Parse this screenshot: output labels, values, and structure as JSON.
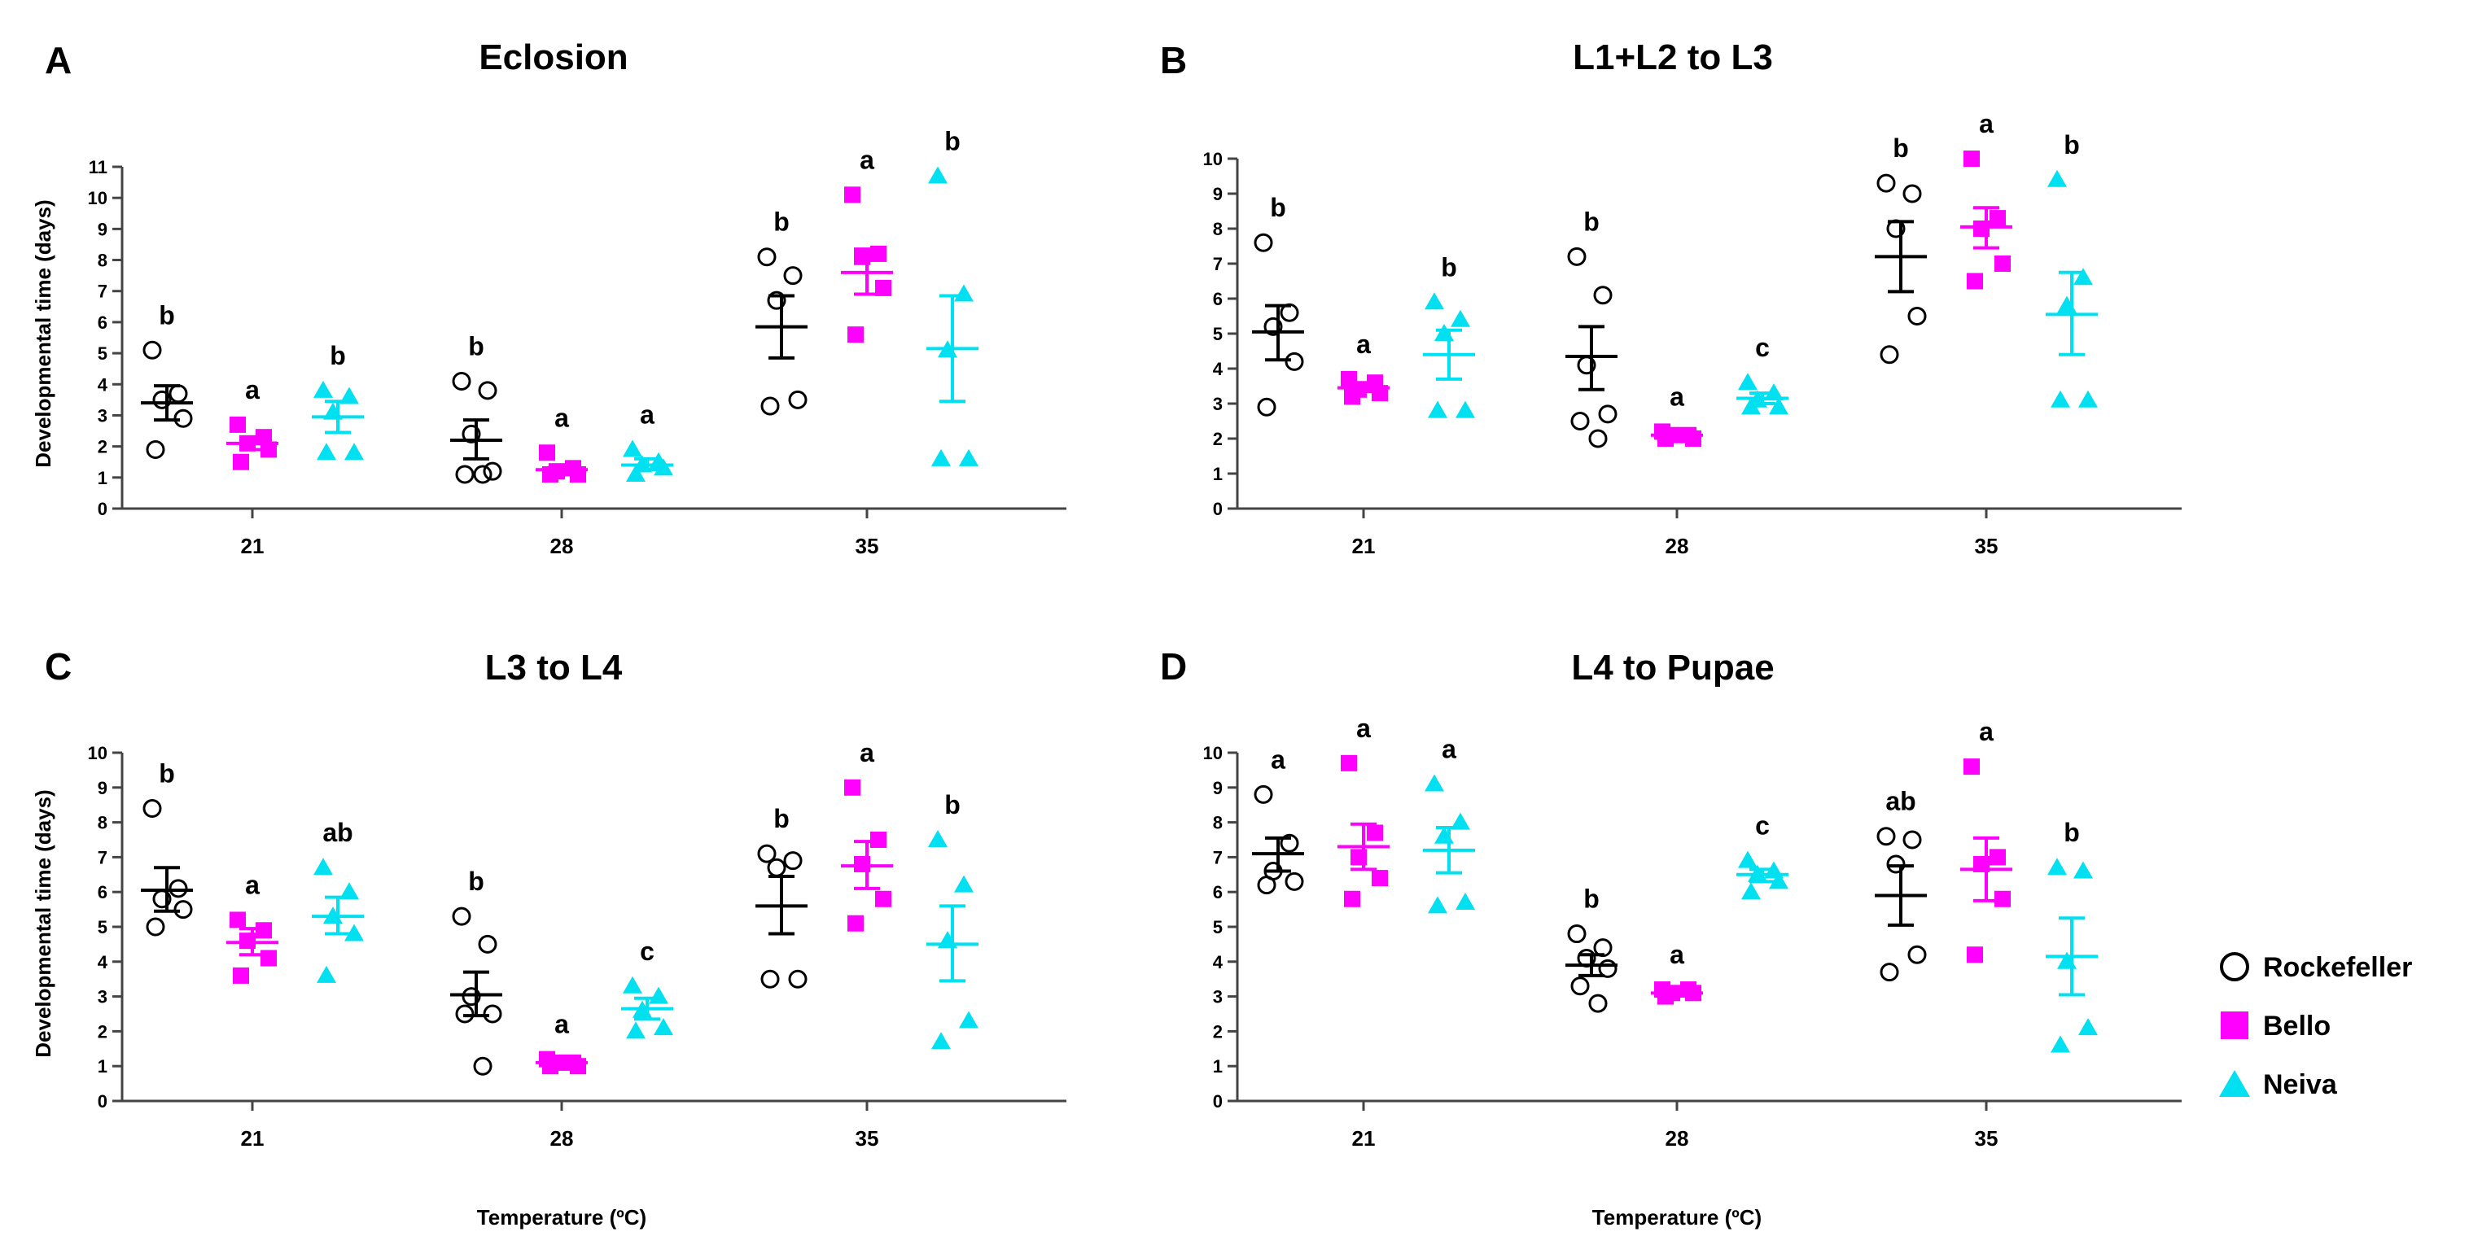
{
  "figure": {
    "x_axis_label": "Temperature (ºC)",
    "y_axis_label": "Developmental time (days)"
  },
  "legend": [
    {
      "name": "Rockefeller",
      "marker": "circle-open",
      "color": "#000000"
    },
    {
      "name": "Bello",
      "marker": "square",
      "color": "#ff00ff"
    },
    {
      "name": "Neiva",
      "marker": "triangle",
      "color": "#00e0f0"
    }
  ],
  "chart_data": [
    {
      "panel": "A",
      "type": "scatter",
      "title": "Eclosion",
      "categories": [
        "21",
        "28",
        "35"
      ],
      "ylim": [
        0,
        11
      ],
      "yticks": [
        0,
        1,
        2,
        3,
        4,
        5,
        6,
        7,
        8,
        9,
        10,
        11
      ],
      "series": [
        {
          "name": "Rockefeller",
          "groups": [
            {
              "points": [
                5.1,
                3.7,
                3.5,
                2.9,
                1.9
              ],
              "mean": 3.4,
              "sem_low": 2.85,
              "sem_high": 3.95,
              "letter": "b"
            },
            {
              "points": [
                4.1,
                3.8,
                2.4,
                1.2,
                1.1,
                1.1
              ],
              "mean": 2.2,
              "sem_low": 1.6,
              "sem_high": 2.85,
              "letter": "b"
            },
            {
              "points": [
                8.1,
                7.5,
                6.7,
                3.5,
                3.3
              ],
              "mean": 5.85,
              "sem_low": 4.85,
              "sem_high": 6.85,
              "letter": "b"
            }
          ]
        },
        {
          "name": "Bello",
          "groups": [
            {
              "points": [
                2.7,
                2.3,
                2.1,
                1.9,
                1.5
              ],
              "mean": 2.1,
              "sem_low": 1.9,
              "sem_high": 2.3,
              "letter": "a"
            },
            {
              "points": [
                1.8,
                1.3,
                1.2,
                1.1,
                1.1
              ],
              "mean": 1.25,
              "sem_low": 1.15,
              "sem_high": 1.4,
              "letter": "a"
            },
            {
              "points": [
                10.1,
                8.2,
                8.1,
                7.1,
                5.6
              ],
              "mean": 7.6,
              "sem_low": 6.9,
              "sem_high": 8.35,
              "letter": "a"
            }
          ]
        },
        {
          "name": "Neiva",
          "groups": [
            {
              "points": [
                3.8,
                3.6,
                3.1,
                1.8,
                1.8
              ],
              "mean": 2.95,
              "sem_low": 2.45,
              "sem_high": 3.45,
              "letter": "b"
            },
            {
              "points": [
                1.9,
                1.5,
                1.4,
                1.3,
                1.1
              ],
              "mean": 1.4,
              "sem_low": 1.25,
              "sem_high": 1.6,
              "letter": "a"
            },
            {
              "points": [
                10.7,
                6.9,
                5.1,
                1.6,
                1.6
              ],
              "mean": 5.15,
              "sem_low": 3.45,
              "sem_high": 6.85,
              "letter": "b"
            }
          ]
        }
      ]
    },
    {
      "panel": "B",
      "type": "scatter",
      "title": "L1+L2 to L3",
      "categories": [
        "21",
        "28",
        "35"
      ],
      "ylim": [
        0,
        10
      ],
      "yticks": [
        0,
        1,
        2,
        3,
        4,
        5,
        6,
        7,
        8,
        9,
        10
      ],
      "series": [
        {
          "name": "Rockefeller",
          "groups": [
            {
              "points": [
                7.6,
                5.6,
                5.2,
                4.2,
                2.9
              ],
              "mean": 5.05,
              "sem_low": 4.25,
              "sem_high": 5.8,
              "letter": "b"
            },
            {
              "points": [
                7.2,
                6.1,
                4.1,
                2.7,
                2.5,
                2.0
              ],
              "mean": 4.35,
              "sem_low": 3.4,
              "sem_high": 5.2,
              "letter": "b"
            },
            {
              "points": [
                9.3,
                9.0,
                8.0,
                5.5,
                4.4
              ],
              "mean": 7.2,
              "sem_low": 6.2,
              "sem_high": 8.2,
              "letter": "b"
            }
          ]
        },
        {
          "name": "Bello",
          "groups": [
            {
              "points": [
                3.7,
                3.6,
                3.4,
                3.3,
                3.2
              ],
              "mean": 3.45,
              "sem_low": 3.35,
              "sem_high": 3.6,
              "letter": "a"
            },
            {
              "points": [
                2.2,
                2.1,
                2.1,
                2.0,
                2.0
              ],
              "mean": 2.1,
              "sem_low": 2.05,
              "sem_high": 2.15,
              "letter": "a"
            },
            {
              "points": [
                10.0,
                8.3,
                8.0,
                7.0,
                6.5
              ],
              "mean": 8.05,
              "sem_low": 7.45,
              "sem_high": 8.6,
              "letter": "a"
            }
          ]
        },
        {
          "name": "Neiva",
          "groups": [
            {
              "points": [
                5.9,
                5.4,
                5.0,
                2.8,
                2.8
              ],
              "mean": 4.4,
              "sem_low": 3.7,
              "sem_high": 5.1,
              "letter": "b"
            },
            {
              "points": [
                3.6,
                3.3,
                3.1,
                2.9,
                2.9
              ],
              "mean": 3.15,
              "sem_low": 3.0,
              "sem_high": 3.3,
              "letter": "c"
            },
            {
              "points": [
                9.4,
                6.6,
                5.8,
                3.1,
                3.1
              ],
              "mean": 5.55,
              "sem_low": 4.4,
              "sem_high": 6.75,
              "letter": "b"
            }
          ]
        }
      ]
    },
    {
      "panel": "C",
      "type": "scatter",
      "title": "L3 to L4",
      "categories": [
        "21",
        "28",
        "35"
      ],
      "ylim": [
        0,
        10
      ],
      "yticks": [
        0,
        1,
        2,
        3,
        4,
        5,
        6,
        7,
        8,
        9,
        10
      ],
      "series": [
        {
          "name": "Rockefeller",
          "groups": [
            {
              "points": [
                8.4,
                6.1,
                5.8,
                5.5,
                5.0
              ],
              "mean": 6.05,
              "sem_low": 5.45,
              "sem_high": 6.7,
              "letter": "b"
            },
            {
              "points": [
                5.3,
                4.5,
                3.0,
                2.5,
                2.5,
                1.0
              ],
              "mean": 3.05,
              "sem_low": 2.45,
              "sem_high": 3.7,
              "letter": "b"
            },
            {
              "points": [
                7.1,
                6.9,
                6.7,
                3.5,
                3.5
              ],
              "mean": 5.6,
              "sem_low": 4.8,
              "sem_high": 6.45,
              "letter": "b"
            }
          ]
        },
        {
          "name": "Bello",
          "groups": [
            {
              "points": [
                5.2,
                4.9,
                4.6,
                4.1,
                3.6
              ],
              "mean": 4.55,
              "sem_low": 4.2,
              "sem_high": 4.95,
              "letter": "a"
            },
            {
              "points": [
                1.2,
                1.1,
                1.1,
                1.0,
                1.0
              ],
              "mean": 1.1,
              "sem_low": 1.05,
              "sem_high": 1.15,
              "letter": "a"
            },
            {
              "points": [
                9.0,
                7.5,
                6.8,
                5.8,
                5.1
              ],
              "mean": 6.75,
              "sem_low": 6.1,
              "sem_high": 7.45,
              "letter": "a"
            }
          ]
        },
        {
          "name": "Neiva",
          "groups": [
            {
              "points": [
                6.7,
                6.0,
                5.3,
                4.8,
                3.6
              ],
              "mean": 5.3,
              "sem_low": 4.8,
              "sem_high": 5.85,
              "letter": "ab"
            },
            {
              "points": [
                3.3,
                3.0,
                2.6,
                2.1,
                2.0
              ],
              "mean": 2.65,
              "sem_low": 2.35,
              "sem_high": 2.95,
              "letter": "c"
            },
            {
              "points": [
                7.5,
                6.2,
                4.6,
                2.3,
                1.7
              ],
              "mean": 4.5,
              "sem_low": 3.45,
              "sem_high": 5.6,
              "letter": "b"
            }
          ]
        }
      ]
    },
    {
      "panel": "D",
      "type": "scatter",
      "title": "L4 to Pupae",
      "categories": [
        "21",
        "28",
        "35"
      ],
      "ylim": [
        0,
        10
      ],
      "yticks": [
        0,
        1,
        2,
        3,
        4,
        5,
        6,
        7,
        8,
        9,
        10
      ],
      "series": [
        {
          "name": "Rockefeller",
          "groups": [
            {
              "points": [
                8.8,
                7.4,
                6.6,
                6.3,
                6.2
              ],
              "mean": 7.1,
              "sem_low": 6.6,
              "sem_high": 7.55,
              "letter": "a"
            },
            {
              "points": [
                4.8,
                4.4,
                4.1,
                3.8,
                3.3,
                2.8
              ],
              "mean": 3.9,
              "sem_low": 3.6,
              "sem_high": 4.2,
              "letter": "b"
            },
            {
              "points": [
                7.6,
                7.5,
                6.8,
                4.2,
                3.7
              ],
              "mean": 5.9,
              "sem_low": 5.05,
              "sem_high": 6.75,
              "letter": "ab"
            }
          ]
        },
        {
          "name": "Bello",
          "groups": [
            {
              "points": [
                9.7,
                7.7,
                7.0,
                6.4,
                5.8
              ],
              "mean": 7.3,
              "sem_low": 6.65,
              "sem_high": 7.95,
              "letter": "a"
            },
            {
              "points": [
                3.2,
                3.2,
                3.1,
                3.1,
                3.0
              ],
              "mean": 3.1,
              "sem_low": 3.05,
              "sem_high": 3.15,
              "letter": "a"
            },
            {
              "points": [
                9.6,
                7.0,
                6.8,
                5.8,
                4.2
              ],
              "mean": 6.65,
              "sem_low": 5.75,
              "sem_high": 7.55,
              "letter": "a"
            }
          ]
        },
        {
          "name": "Neiva",
          "groups": [
            {
              "points": [
                9.1,
                8.0,
                7.6,
                5.7,
                5.6
              ],
              "mean": 7.2,
              "sem_low": 6.55,
              "sem_high": 7.85,
              "letter": "a"
            },
            {
              "points": [
                6.9,
                6.6,
                6.5,
                6.3,
                6.0
              ],
              "mean": 6.5,
              "sem_low": 6.3,
              "sem_high": 6.65,
              "letter": "c"
            },
            {
              "points": [
                6.7,
                6.6,
                4.0,
                2.1,
                1.6
              ],
              "mean": 4.15,
              "sem_low": 3.05,
              "sem_high": 5.25,
              "letter": "b"
            }
          ]
        }
      ]
    }
  ]
}
